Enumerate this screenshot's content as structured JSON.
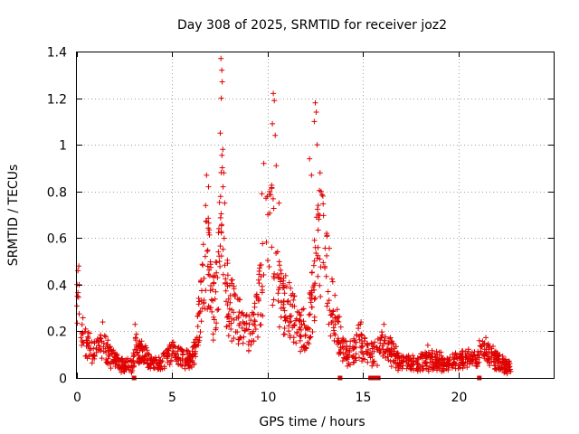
{
  "chart_data": {
    "type": "scatter",
    "title": "Day 308 of 2025, SRMTID for receiver joz2",
    "xlabel": "GPS time / hours",
    "ylabel": "SRMTID / TECUs",
    "xlim": [
      0,
      25
    ],
    "ylim": [
      0,
      1.4
    ],
    "x_ticks": [
      0,
      5,
      10,
      15,
      20
    ],
    "y_ticks": [
      0,
      0.2,
      0.4,
      0.6,
      0.8,
      1,
      1.2,
      1.4
    ],
    "x_tick_labels": [
      "0",
      "5",
      "10",
      "15",
      "20"
    ],
    "y_tick_labels": [
      "0",
      "0.2",
      "0.4",
      "0.6",
      "0.8",
      "1",
      "1.2",
      "1.4"
    ],
    "grid": true,
    "marker": "+",
    "color": "#e00000",
    "profile": [
      [
        0.0,
        0.3
      ],
      [
        0.1,
        0.4
      ],
      [
        0.25,
        0.2
      ],
      [
        0.5,
        0.13
      ],
      [
        1.0,
        0.12
      ],
      [
        1.4,
        0.14
      ],
      [
        1.7,
        0.1
      ],
      [
        2.0,
        0.08
      ],
      [
        2.5,
        0.05
      ],
      [
        2.9,
        0.06
      ],
      [
        3.1,
        0.13
      ],
      [
        3.5,
        0.1
      ],
      [
        4.0,
        0.06
      ],
      [
        4.5,
        0.08
      ],
      [
        5.0,
        0.11
      ],
      [
        5.6,
        0.09
      ],
      [
        6.0,
        0.07
      ],
      [
        6.2,
        0.12
      ],
      [
        6.5,
        0.32
      ],
      [
        6.8,
        0.55
      ],
      [
        7.0,
        0.4
      ],
      [
        7.2,
        0.28
      ],
      [
        7.4,
        0.45
      ],
      [
        7.6,
        0.7
      ],
      [
        7.8,
        0.4
      ],
      [
        8.0,
        0.32
      ],
      [
        8.3,
        0.26
      ],
      [
        8.6,
        0.22
      ],
      [
        9.0,
        0.18
      ],
      [
        9.3,
        0.22
      ],
      [
        9.6,
        0.35
      ],
      [
        9.9,
        0.55
      ],
      [
        10.2,
        0.6
      ],
      [
        10.5,
        0.4
      ],
      [
        10.8,
        0.32
      ],
      [
        11.2,
        0.3
      ],
      [
        11.6,
        0.22
      ],
      [
        12.0,
        0.2
      ],
      [
        12.3,
        0.3
      ],
      [
        12.6,
        0.55
      ],
      [
        12.8,
        0.6
      ],
      [
        13.0,
        0.48
      ],
      [
        13.3,
        0.35
      ],
      [
        13.6,
        0.22
      ],
      [
        13.9,
        0.14
      ],
      [
        14.2,
        0.1
      ],
      [
        14.5,
        0.12
      ],
      [
        14.8,
        0.16
      ],
      [
        15.2,
        0.11
      ],
      [
        15.6,
        0.1
      ],
      [
        16.0,
        0.14
      ],
      [
        16.3,
        0.13
      ],
      [
        16.8,
        0.08
      ],
      [
        17.5,
        0.06
      ],
      [
        18.5,
        0.08
      ],
      [
        19.0,
        0.07
      ],
      [
        19.5,
        0.06
      ],
      [
        20.0,
        0.07
      ],
      [
        20.5,
        0.08
      ],
      [
        21.0,
        0.07
      ],
      [
        21.3,
        0.14
      ],
      [
        21.7,
        0.1
      ],
      [
        22.2,
        0.06
      ],
      [
        22.8,
        0.04
      ]
    ],
    "spikes": [
      [
        0.05,
        0.46
      ],
      [
        0.1,
        0.48
      ],
      [
        0.12,
        0.4
      ],
      [
        1.35,
        0.24
      ],
      [
        3.05,
        0.23
      ],
      [
        6.8,
        0.87
      ],
      [
        6.9,
        0.82
      ],
      [
        6.75,
        0.74
      ],
      [
        7.55,
        1.37
      ],
      [
        7.6,
        1.32
      ],
      [
        7.62,
        1.27
      ],
      [
        7.57,
        1.2
      ],
      [
        7.52,
        1.05
      ],
      [
        7.65,
        0.98
      ],
      [
        7.7,
        0.88
      ],
      [
        7.75,
        0.75
      ],
      [
        8.1,
        0.42
      ],
      [
        9.7,
        0.79
      ],
      [
        9.8,
        0.92
      ],
      [
        10.3,
        1.22
      ],
      [
        10.35,
        1.19
      ],
      [
        10.25,
        1.09
      ],
      [
        10.4,
        1.04
      ],
      [
        10.45,
        0.91
      ],
      [
        10.6,
        0.75
      ],
      [
        12.5,
        1.18
      ],
      [
        12.55,
        1.14
      ],
      [
        12.45,
        1.1
      ],
      [
        12.6,
        1.0
      ],
      [
        12.2,
        0.94
      ],
      [
        12.3,
        0.87
      ],
      [
        12.75,
        0.88
      ],
      [
        12.9,
        0.78
      ],
      [
        13.1,
        0.62
      ],
      [
        14.9,
        0.24
      ],
      [
        16.1,
        0.23
      ],
      [
        18.4,
        0.14
      ],
      [
        21.1,
        0.16
      ]
    ],
    "squares_at_zero": [
      3.0,
      13.8,
      15.4,
      15.6,
      15.8,
      21.1
    ],
    "n_points": 1450,
    "seed": 308
  }
}
